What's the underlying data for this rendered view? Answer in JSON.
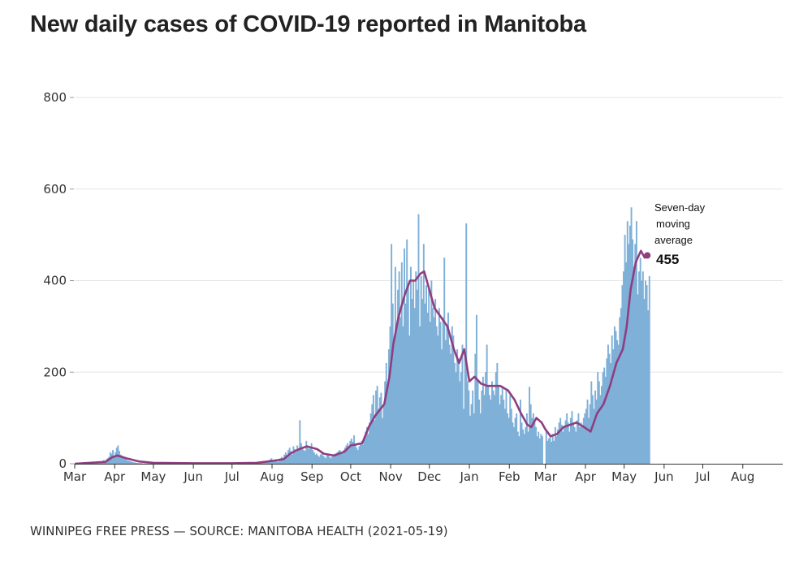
{
  "header": {
    "title": "New daily cases of COVID-19 reported in Manitoba"
  },
  "footer": {
    "source": "WINNIPEG FREE PRESS — SOURCE: MANITOBA HEALTH (2021-05-19)"
  },
  "colors": {
    "bars": "#7fb0d8",
    "average_line": "#8e3e80",
    "grid": "#e6e6e6",
    "axis": "#333333"
  },
  "chart_data": {
    "type": "bar",
    "title": "New daily cases of COVID-19 reported in Manitoba",
    "xlabel": "",
    "ylabel": "",
    "ylim": [
      0,
      800
    ],
    "y_ticks": [
      "0",
      "200",
      "400",
      "600",
      "800"
    ],
    "x_tick_labels": [
      "Mar",
      "Apr",
      "May",
      "Jun",
      "Jul",
      "Aug",
      "Sep",
      "Oct",
      "Nov",
      "Dec",
      "Jan",
      "Feb",
      "Mar",
      "Apr",
      "May",
      "Jun",
      "Jul",
      "Aug"
    ],
    "x_range": [
      "2020-03-01",
      "2021-08-31"
    ],
    "grid": "horizontal",
    "daily_series": {
      "values_by_month_starting_2020_03": [
        [
          0,
          0,
          0,
          0,
          0,
          0,
          0,
          0,
          0,
          0,
          0,
          0,
          0,
          1,
          1,
          2,
          3,
          2,
          4,
          3,
          5,
          4,
          8,
          6,
          10,
          12,
          15,
          25,
          22,
          30,
          18
        ],
        [
          25,
          35,
          40,
          28,
          20,
          18,
          15,
          12,
          10,
          8,
          7,
          6,
          5,
          4,
          3,
          3,
          2,
          2,
          1,
          2,
          1,
          1,
          0,
          1,
          0,
          1,
          0,
          0,
          1,
          0
        ],
        [
          1,
          0,
          1,
          2,
          1,
          0,
          1,
          0,
          0,
          1,
          0,
          1,
          0,
          0,
          1,
          0,
          1,
          0,
          0,
          0,
          1,
          0,
          0,
          0,
          1,
          0,
          0,
          0,
          1,
          0,
          0
        ],
        [
          0,
          1,
          0,
          0,
          1,
          0,
          0,
          0,
          1,
          0,
          0,
          1,
          0,
          0,
          0,
          1,
          0,
          0,
          0,
          1,
          0,
          0,
          1,
          0,
          0,
          0,
          1,
          0,
          0,
          0
        ],
        [
          0,
          1,
          0,
          0,
          1,
          0,
          0,
          2,
          1,
          0,
          1,
          2,
          0,
          1,
          1,
          2,
          0,
          1,
          2,
          3,
          1,
          2,
          3,
          4,
          2,
          5,
          6,
          3,
          8,
          9,
          12
        ],
        [
          5,
          8,
          10,
          6,
          4,
          8,
          12,
          15,
          10,
          20,
          25,
          18,
          30,
          35,
          28,
          20,
          38,
          32,
          25,
          40,
          30,
          95,
          45,
          35,
          30,
          28,
          50,
          40,
          32,
          38,
          45
        ],
        [
          30,
          25,
          20,
          22,
          18,
          15,
          20,
          25,
          18,
          15,
          12,
          18,
          20,
          15,
          12,
          16,
          20,
          22,
          18,
          25,
          28,
          30,
          25,
          22,
          30,
          35,
          40,
          45,
          38,
          50
        ],
        [
          55,
          48,
          62,
          40,
          35,
          30,
          38,
          45,
          50,
          42,
          60,
          70,
          80,
          65,
          90,
          110,
          130,
          150,
          95,
          160,
          170,
          120,
          145,
          155,
          100,
          130,
          180,
          220,
          170,
          250,
          300
        ],
        [
          480,
          350,
          260,
          430,
          300,
          380,
          420,
          320,
          440,
          300,
          470,
          350,
          490,
          390,
          280,
          430,
          360,
          400,
          340,
          420,
          380,
          545,
          300,
          410,
          360,
          480,
          350,
          390,
          330,
          380
        ],
        [
          310,
          400,
          340,
          320,
          360,
          300,
          280,
          340,
          310,
          250,
          320,
          450,
          270,
          300,
          330,
          260,
          240,
          300,
          280,
          220,
          200,
          250,
          230,
          180,
          200,
          260,
          120,
          240,
          525,
          180,
          160
        ],
        [
          105,
          130,
          160,
          110,
          240,
          325,
          180,
          140,
          110,
          160,
          190,
          150,
          200,
          260,
          170,
          150,
          140,
          180,
          160,
          150,
          200,
          220,
          170,
          130,
          150,
          170,
          140,
          120,
          160,
          110,
          100
        ],
        [
          150,
          120,
          90,
          80,
          100,
          110,
          70,
          60,
          140,
          90,
          75,
          65,
          80,
          110,
          70,
          168,
          130,
          100,
          110,
          90,
          80,
          60,
          70,
          55,
          65,
          60
        ],
        [
          70,
          50,
          55,
          60,
          48,
          65,
          50,
          80,
          60,
          75,
          90,
          100,
          85,
          70,
          80,
          95,
          110,
          90,
          70,
          100,
          115,
          90,
          80,
          70,
          95,
          110,
          80,
          90,
          85,
          100,
          110
        ],
        [
          120,
          140,
          100,
          130,
          180,
          150,
          120,
          160,
          140,
          200,
          180,
          150,
          170,
          200,
          210,
          190,
          230,
          260,
          240,
          220,
          280,
          250,
          300,
          290,
          270,
          260,
          320,
          340,
          390,
          420
        ],
        [
          500,
          440,
          530,
          480,
          520,
          560,
          490,
          430,
          480,
          530,
          370,
          420,
          450,
          400,
          420,
          360,
          400,
          390,
          335,
          410
        ]
      ]
    },
    "moving_average_series": {
      "name": "Seven-day moving average",
      "points": [
        [
          "2020-03-01",
          0
        ],
        [
          "2020-03-25",
          4
        ],
        [
          "2020-03-30",
          14
        ],
        [
          "2020-04-03",
          18
        ],
        [
          "2020-04-10",
          12
        ],
        [
          "2020-04-20",
          5
        ],
        [
          "2020-05-01",
          2
        ],
        [
          "2020-06-01",
          1
        ],
        [
          "2020-07-01",
          1
        ],
        [
          "2020-07-20",
          2
        ],
        [
          "2020-08-01",
          6
        ],
        [
          "2020-08-10",
          10
        ],
        [
          "2020-08-15",
          22
        ],
        [
          "2020-08-22",
          32
        ],
        [
          "2020-08-28",
          38
        ],
        [
          "2020-09-05",
          32
        ],
        [
          "2020-09-10",
          22
        ],
        [
          "2020-09-18",
          18
        ],
        [
          "2020-09-26",
          26
        ],
        [
          "2020-10-01",
          40
        ],
        [
          "2020-10-05",
          42
        ],
        [
          "2020-10-10",
          45
        ],
        [
          "2020-10-15",
          80
        ],
        [
          "2020-10-20",
          105
        ],
        [
          "2020-10-27",
          130
        ],
        [
          "2020-10-31",
          190
        ],
        [
          "2020-11-03",
          260
        ],
        [
          "2020-11-07",
          320
        ],
        [
          "2020-11-12",
          370
        ],
        [
          "2020-11-16",
          400
        ],
        [
          "2020-11-20",
          400
        ],
        [
          "2020-11-24",
          415
        ],
        [
          "2020-11-27",
          420
        ],
        [
          "2020-12-01",
          380
        ],
        [
          "2020-12-05",
          340
        ],
        [
          "2020-12-10",
          320
        ],
        [
          "2020-12-15",
          300
        ],
        [
          "2020-12-20",
          250
        ],
        [
          "2020-12-24",
          220
        ],
        [
          "2020-12-28",
          250
        ],
        [
          "2021-01-01",
          180
        ],
        [
          "2021-01-05",
          190
        ],
        [
          "2021-01-10",
          175
        ],
        [
          "2021-01-15",
          170
        ],
        [
          "2021-01-20",
          170
        ],
        [
          "2021-01-25",
          170
        ],
        [
          "2021-01-31",
          160
        ],
        [
          "2021-02-05",
          140
        ],
        [
          "2021-02-10",
          110
        ],
        [
          "2021-02-15",
          85
        ],
        [
          "2021-02-18",
          80
        ],
        [
          "2021-02-22",
          100
        ],
        [
          "2021-02-26",
          90
        ],
        [
          "2021-03-01",
          75
        ],
        [
          "2021-03-05",
          60
        ],
        [
          "2021-03-10",
          65
        ],
        [
          "2021-03-15",
          80
        ],
        [
          "2021-03-20",
          85
        ],
        [
          "2021-03-25",
          90
        ],
        [
          "2021-03-31",
          80
        ],
        [
          "2021-04-05",
          70
        ],
        [
          "2021-04-10",
          110
        ],
        [
          "2021-04-15",
          130
        ],
        [
          "2021-04-20",
          170
        ],
        [
          "2021-04-25",
          220
        ],
        [
          "2021-04-30",
          250
        ],
        [
          "2021-05-03",
          300
        ],
        [
          "2021-05-06",
          380
        ],
        [
          "2021-05-10",
          440
        ],
        [
          "2021-05-14",
          465
        ],
        [
          "2021-05-17",
          450
        ],
        [
          "2021-05-19",
          455
        ]
      ]
    },
    "annotation": {
      "lines": [
        "Seven-day",
        "moving",
        "average"
      ],
      "value": "455",
      "date": "2021-05-19"
    }
  }
}
